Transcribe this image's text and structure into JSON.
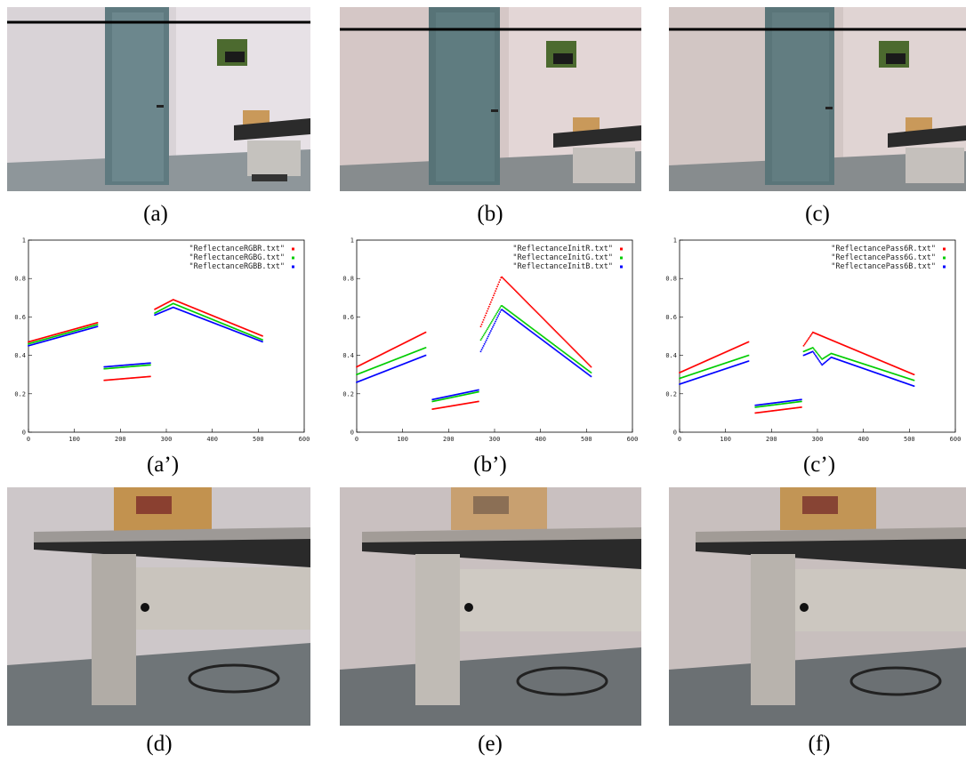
{
  "row1": [
    {
      "caption": "(a)"
    },
    {
      "caption": "(b)"
    },
    {
      "caption": "(c)"
    }
  ],
  "row3": [
    {
      "caption": "(d)"
    },
    {
      "caption": "(e)"
    },
    {
      "caption": "(f)"
    }
  ],
  "chart_data": [
    {
      "type": "scatter",
      "caption": "(a’)",
      "xlim": [
        0,
        600
      ],
      "ylim": [
        0,
        1
      ],
      "xticks": [
        "0",
        "100",
        "200",
        "300",
        "400",
        "500",
        "600"
      ],
      "yticks": [
        "0",
        "0.2",
        "0.4",
        "0.6",
        "0.8",
        "1"
      ],
      "legend_position": "top-right",
      "series": [
        {
          "name": "\"ReflectanceRGBR.txt\"",
          "color": "#ff0000",
          "segments": [
            {
              "x": [
                0,
                150
              ],
              "y": [
                0.47,
                0.57
              ]
            },
            {
              "x": [
                165,
                265
              ],
              "y": [
                0.27,
                0.29
              ]
            },
            {
              "x": [
                275,
                315,
                510
              ],
              "y": [
                0.64,
                0.69,
                0.5
              ]
            }
          ]
        },
        {
          "name": "\"ReflectanceRGBG.txt\"",
          "color": "#00cc00",
          "segments": [
            {
              "x": [
                0,
                150
              ],
              "y": [
                0.46,
                0.56
              ]
            },
            {
              "x": [
                165,
                265
              ],
              "y": [
                0.33,
                0.35
              ]
            },
            {
              "x": [
                275,
                315,
                510
              ],
              "y": [
                0.62,
                0.67,
                0.48
              ]
            }
          ]
        },
        {
          "name": "\"ReflectanceRGBB.txt\"",
          "color": "#0000ff",
          "segments": [
            {
              "x": [
                0,
                150
              ],
              "y": [
                0.45,
                0.55
              ]
            },
            {
              "x": [
                165,
                265
              ],
              "y": [
                0.34,
                0.36
              ]
            },
            {
              "x": [
                275,
                315,
                510
              ],
              "y": [
                0.61,
                0.65,
                0.47
              ]
            }
          ]
        }
      ]
    },
    {
      "type": "scatter",
      "caption": "(b’)",
      "xlim": [
        0,
        600
      ],
      "ylim": [
        0,
        1
      ],
      "xticks": [
        "0",
        "100",
        "200",
        "300",
        "400",
        "500",
        "600"
      ],
      "yticks": [
        "0",
        "0.2",
        "0.4",
        "0.6",
        "0.8",
        "1"
      ],
      "legend_position": "top-right",
      "series": [
        {
          "name": "\"ReflectanceInitR.txt\"",
          "color": "#ff0000",
          "segments": [
            {
              "x": [
                0,
                150
              ],
              "y": [
                0.34,
                0.52
              ]
            },
            {
              "x": [
                165,
                265
              ],
              "y": [
                0.12,
                0.16
              ]
            },
            {
              "x": [
                270,
                315,
                510
              ],
              "y": [
                0.55,
                0.81,
                0.34
              ]
            }
          ]
        },
        {
          "name": "\"ReflectanceInitG.txt\"",
          "color": "#00cc00",
          "segments": [
            {
              "x": [
                0,
                150
              ],
              "y": [
                0.3,
                0.44
              ]
            },
            {
              "x": [
                165,
                265
              ],
              "y": [
                0.16,
                0.21
              ]
            },
            {
              "x": [
                270,
                315,
                510
              ],
              "y": [
                0.48,
                0.66,
                0.31
              ]
            }
          ]
        },
        {
          "name": "\"ReflectanceInitB.txt\"",
          "color": "#0000ff",
          "segments": [
            {
              "x": [
                0,
                150
              ],
              "y": [
                0.26,
                0.4
              ]
            },
            {
              "x": [
                165,
                265
              ],
              "y": [
                0.17,
                0.22
              ]
            },
            {
              "x": [
                270,
                315,
                510
              ],
              "y": [
                0.42,
                0.64,
                0.29
              ]
            }
          ]
        }
      ]
    },
    {
      "type": "scatter",
      "caption": "(c’)",
      "xlim": [
        0,
        600
      ],
      "ylim": [
        0,
        1
      ],
      "xticks": [
        "0",
        "100",
        "200",
        "300",
        "400",
        "500",
        "600"
      ],
      "yticks": [
        "0",
        "0.2",
        "0.4",
        "0.6",
        "0.8",
        "1"
      ],
      "legend_position": "top-right",
      "series": [
        {
          "name": "\"ReflectancePass6R.txt\"",
          "color": "#ff0000",
          "segments": [
            {
              "x": [
                0,
                150
              ],
              "y": [
                0.31,
                0.47
              ]
            },
            {
              "x": [
                165,
                265
              ],
              "y": [
                0.1,
                0.13
              ]
            },
            {
              "x": [
                270,
                290,
                310,
                330,
                510
              ],
              "y": [
                0.45,
                0.52,
                0.5,
                0.48,
                0.3
              ]
            }
          ]
        },
        {
          "name": "\"ReflectancePass6G.txt\"",
          "color": "#00cc00",
          "segments": [
            {
              "x": [
                0,
                150
              ],
              "y": [
                0.28,
                0.4
              ]
            },
            {
              "x": [
                165,
                265
              ],
              "y": [
                0.13,
                0.16
              ]
            },
            {
              "x": [
                270,
                290,
                310,
                330,
                510
              ],
              "y": [
                0.42,
                0.44,
                0.38,
                0.41,
                0.27
              ]
            }
          ]
        },
        {
          "name": "\"ReflectancePass6B.txt\"",
          "color": "#0000ff",
          "segments": [
            {
              "x": [
                0,
                150
              ],
              "y": [
                0.25,
                0.37
              ]
            },
            {
              "x": [
                165,
                265
              ],
              "y": [
                0.14,
                0.17
              ]
            },
            {
              "x": [
                270,
                290,
                310,
                330,
                510
              ],
              "y": [
                0.4,
                0.42,
                0.35,
                0.39,
                0.24
              ]
            }
          ]
        }
      ]
    }
  ]
}
